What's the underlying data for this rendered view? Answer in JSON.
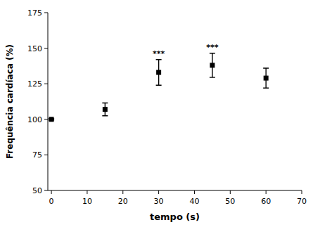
{
  "chart_data": {
    "type": "scatter",
    "x": [
      0,
      15,
      30,
      45,
      60
    ],
    "values": [
      100,
      107,
      133,
      138,
      129
    ],
    "errors": [
      0.5,
      4.5,
      9.0,
      8.5,
      7.0
    ],
    "annotations": [
      null,
      null,
      "***",
      "***",
      null
    ],
    "xlabel": "tempo (s)",
    "ylabel": "Frequência cardíaca (%)",
    "xlim": [
      -1,
      70
    ],
    "ylim": [
      50,
      175
    ],
    "xticks": [
      0,
      10,
      20,
      30,
      40,
      50,
      60,
      70
    ],
    "yticks": [
      50,
      75,
      100,
      125,
      150,
      175
    ],
    "color": "#000000",
    "marker": "square",
    "grid": false
  }
}
